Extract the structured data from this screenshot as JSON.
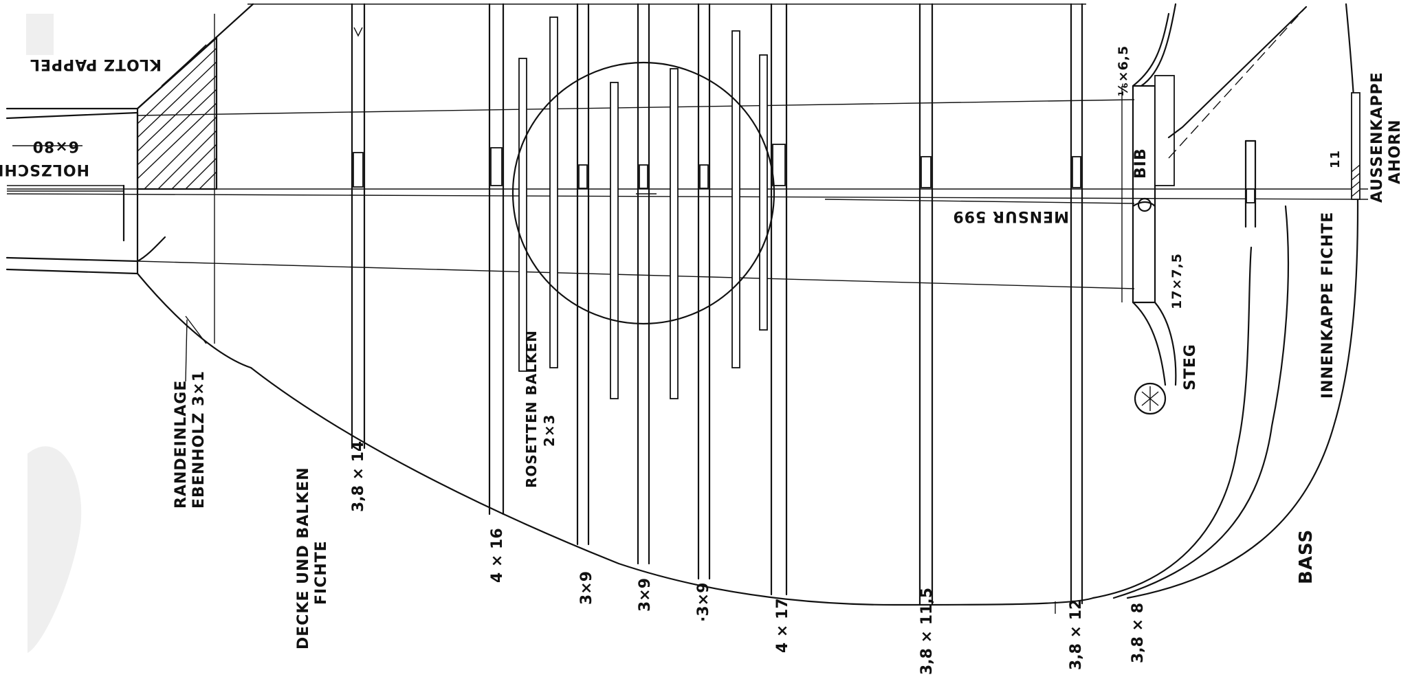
{
  "labels": {
    "klotz": "KLOTZ PAPPEL",
    "holzschraube": "HOLZSCHRAUBE",
    "holzschraube_size": "6×80",
    "randeinlage_1": "RANDEINLAGE",
    "randeinlage_2": "EBENHOLZ 3×1",
    "decke_1": "DECKE UND BALKEN",
    "decke_2": "FICHTE",
    "rosetten_1": "ROSETTEN BALKEN",
    "rosetten_2": "2×3",
    "mensur": "MENSUR 599",
    "bib": "BIB",
    "bridge_top": "⅙×6,5",
    "steg": "STEG",
    "steg_size": "17×7,5",
    "innenkappe": "INNENKAPPE FICHTE",
    "aussenkappe_1": "AUSSENKAPPE",
    "aussenkappe_2": "AHORN",
    "aussenkappe_3": "11",
    "bass": "BASS"
  },
  "dimensions": [
    {
      "id": "b1",
      "text": "3,8 × 14"
    },
    {
      "id": "b2",
      "text": "4 × 16"
    },
    {
      "id": "b3",
      "text": "3×9"
    },
    {
      "id": "b4",
      "text": "3×9"
    },
    {
      "id": "b5",
      "text": "·3×9"
    },
    {
      "id": "b6",
      "text": "4 × 17"
    },
    {
      "id": "b7",
      "text": "3,8 × 11,5"
    },
    {
      "id": "b8",
      "text": "3,8 × 12"
    },
    {
      "id": "b9",
      "text": "3,8 × 8"
    }
  ]
}
